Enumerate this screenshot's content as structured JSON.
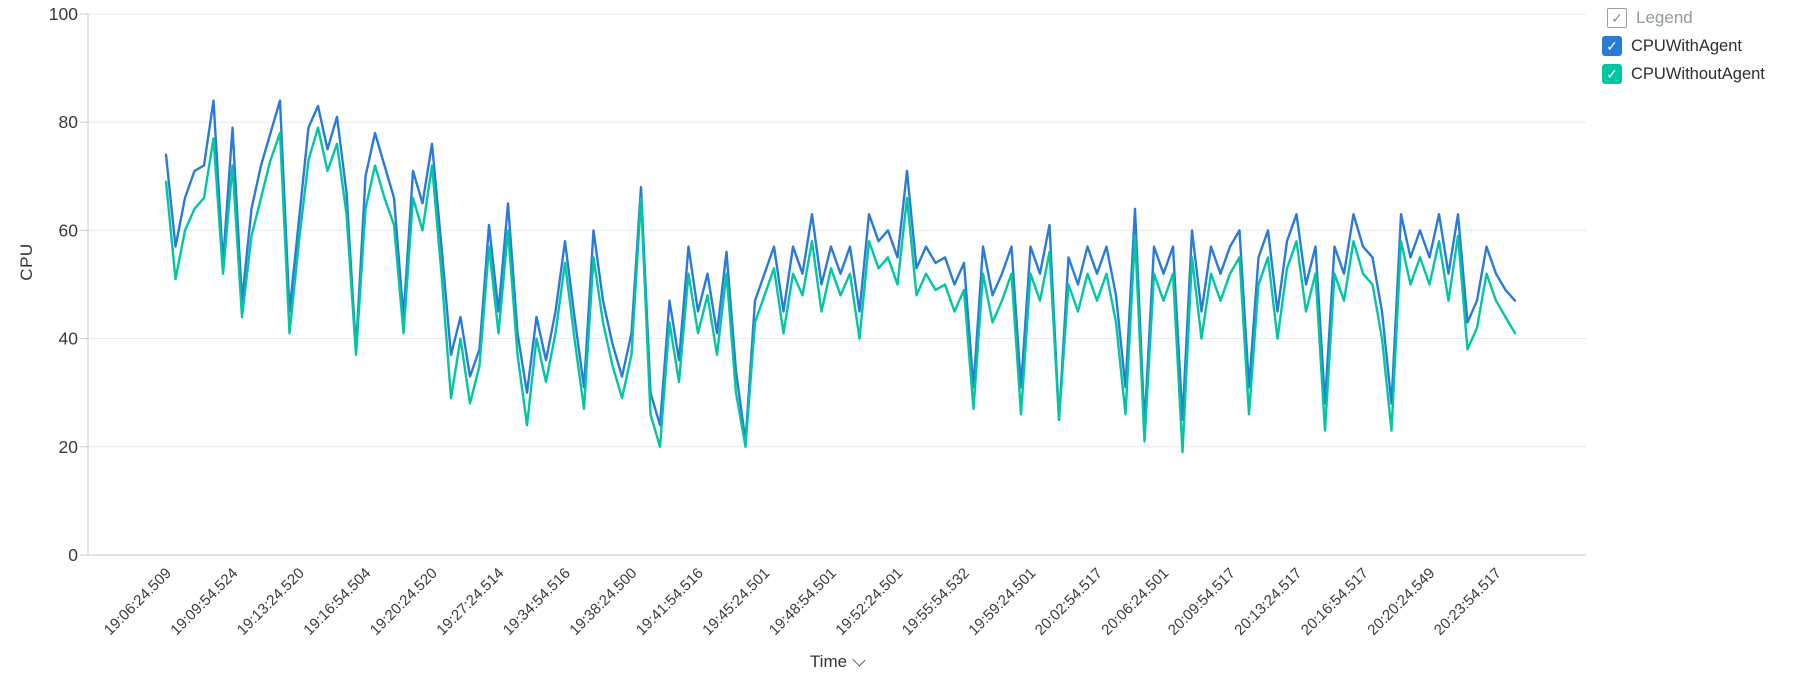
{
  "page": {
    "background": "#ffffff"
  },
  "icons": {
    "checkmark": "✓",
    "x_axis_chevron": "chevron-down"
  },
  "colors": {
    "grid": "#e8e8e8",
    "axis": "#c9c9c9",
    "tick_text": "#3a3a3a",
    "legend_header_text": "#939a9e",
    "series_blue": "#2a7bd9",
    "series_teal": "#00c6a2"
  },
  "legend": {
    "header_label": "Legend",
    "header_checked": true,
    "items": [
      {
        "label": "CPUWithAgent",
        "color": "#2a7bd9",
        "checked": true
      },
      {
        "label": "CPUWithoutAgent",
        "color": "#00c6a2",
        "checked": true
      }
    ]
  },
  "axes": {
    "y_label": "CPU",
    "x_label": "Time"
  },
  "chart_data": {
    "type": "line",
    "title": "",
    "xlabel": "Time",
    "ylabel": "CPU",
    "ylim": [
      0,
      100
    ],
    "y_ticks": [
      0,
      20,
      40,
      60,
      80,
      100
    ],
    "grid": "horizontal",
    "legend_position": "top-right",
    "points_per_tick": 7,
    "categories": [
      "19:06:24.509",
      "19:09:54.524",
      "19:13:24.520",
      "19:16:54.504",
      "19:20:24.520",
      "19:27:24.514",
      "19:34:54.516",
      "19:38:24.500",
      "19:41:54.516",
      "19:45:24.501",
      "19:48:54.501",
      "19:52:24.501",
      "19:55:54.532",
      "19:59:24.501",
      "20:02:54.517",
      "20:06:24.501",
      "20:09:54.517",
      "20:13:24.517",
      "20:16:54.517",
      "20:20:24.549",
      "20:23:54.517"
    ],
    "series": [
      {
        "name": "CPUWithAgent",
        "color": "#2a7bd9",
        "values": [
          74,
          57,
          66,
          71,
          72,
          84,
          54,
          79,
          47,
          64,
          72,
          78,
          84,
          45,
          62,
          79,
          83,
          75,
          81,
          67,
          38,
          70,
          78,
          72,
          66,
          44,
          71,
          65,
          76,
          57,
          37,
          44,
          33,
          38,
          61,
          45,
          65,
          41,
          30,
          44,
          36,
          45,
          58,
          44,
          31,
          60,
          47,
          39,
          33,
          41,
          68,
          30,
          24,
          47,
          36,
          57,
          45,
          52,
          41,
          56,
          34,
          21,
          47,
          52,
          57,
          45,
          57,
          52,
          63,
          50,
          57,
          52,
          57,
          45,
          63,
          58,
          60,
          55,
          71,
          53,
          57,
          54,
          55,
          50,
          54,
          31,
          57,
          48,
          52,
          57,
          31,
          57,
          52,
          61,
          25,
          55,
          50,
          57,
          52,
          57,
          48,
          31,
          64,
          24,
          57,
          52,
          57,
          25,
          60,
          45,
          57,
          52,
          57,
          60,
          31,
          55,
          60,
          45,
          58,
          63,
          50,
          57,
          28,
          57,
          52,
          63,
          57,
          55,
          45,
          28,
          63,
          55,
          60,
          55,
          63,
          52,
          63,
          43,
          47,
          57,
          52,
          49,
          47
        ]
      },
      {
        "name": "CPUWithoutAgent",
        "color": "#00c6a2",
        "values": [
          69,
          51,
          60,
          64,
          66,
          77,
          52,
          72,
          44,
          59,
          66,
          73,
          78,
          41,
          58,
          73,
          79,
          71,
          76,
          63,
          37,
          64,
          72,
          66,
          61,
          41,
          66,
          60,
          72,
          52,
          29,
          40,
          28,
          35,
          57,
          41,
          60,
          37,
          24,
          40,
          32,
          41,
          54,
          40,
          27,
          55,
          43,
          35,
          29,
          37,
          66,
          26,
          20,
          43,
          32,
          52,
          41,
          48,
          37,
          52,
          30,
          20,
          43,
          48,
          53,
          41,
          52,
          48,
          58,
          45,
          53,
          48,
          52,
          40,
          58,
          53,
          55,
          50,
          66,
          48,
          52,
          49,
          50,
          45,
          49,
          27,
          52,
          43,
          47,
          52,
          26,
          52,
          47,
          56,
          25,
          50,
          45,
          52,
          47,
          52,
          43,
          26,
          59,
          21,
          52,
          47,
          52,
          19,
          55,
          40,
          52,
          47,
          52,
          55,
          26,
          50,
          55,
          40,
          53,
          58,
          45,
          52,
          23,
          52,
          47,
          58,
          52,
          50,
          40,
          23,
          58,
          50,
          55,
          50,
          58,
          47,
          59,
          38,
          42,
          52,
          47,
          44,
          41
        ]
      }
    ]
  }
}
